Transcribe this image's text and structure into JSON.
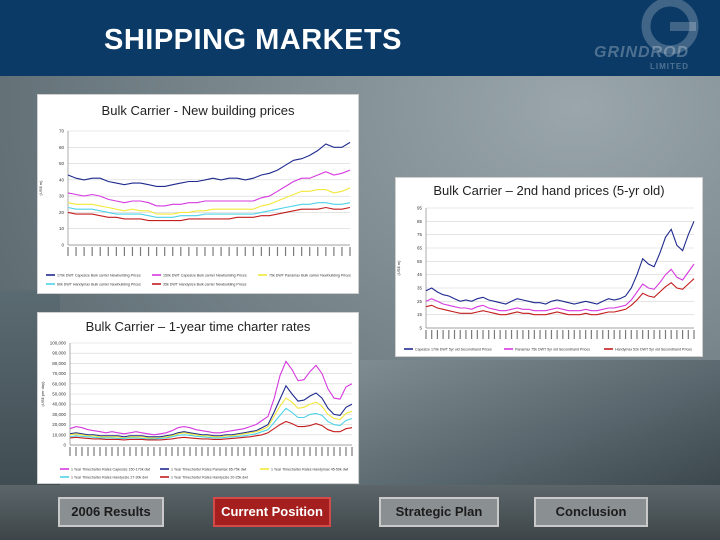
{
  "slide": {
    "title": "SHIPPING MARKETS",
    "logo_text": "GRINDROD",
    "logo_sub": "LIMITED"
  },
  "nav": [
    {
      "label": "2006 Results",
      "active": false
    },
    {
      "label": "Current Position",
      "active": true
    },
    {
      "label": "Strategic Plan",
      "active": false
    },
    {
      "label": "Conclusion",
      "active": false
    }
  ],
  "colors": {
    "header": "#0b3a66",
    "nav_active": "#a51f1f",
    "series_blue": "#1f2a8f",
    "series_magenta": "#d63adf",
    "series_yellow": "#f2e83a",
    "series_cyan": "#4fd3e8",
    "series_red": "#c31d1d"
  },
  "chart_data": [
    {
      "type": "line",
      "title": "Bulk Carrier - New building prices",
      "ylabel": "(US$ m)",
      "ylim": [
        0,
        70
      ],
      "yticks": [
        "0",
        "10",
        "20",
        "30",
        "40",
        "50",
        "60",
        "70"
      ],
      "grid": true,
      "legend": "bottom",
      "x_count": 36,
      "series": [
        {
          "name": "170k DWT Capesize Bulk carrier Newbuilding Prices",
          "color": "#1f2a8f",
          "values": [
            43,
            41,
            40,
            41,
            41,
            39,
            38,
            37,
            38,
            38,
            37,
            36,
            36,
            37,
            38,
            39,
            39,
            40,
            41,
            40,
            41,
            41,
            40,
            41,
            43,
            44,
            46,
            49,
            52,
            53,
            55,
            58,
            62,
            60,
            60,
            63
          ]
        },
        {
          "name": "150k DWT Capesize Bulk carrier Newbuilding Prices",
          "color": "#d63adf",
          "values": [
            32,
            31,
            30,
            31,
            30,
            28,
            27,
            26,
            27,
            27,
            26,
            24,
            24,
            25,
            25,
            26,
            26,
            27,
            27,
            27,
            27,
            27,
            27,
            27,
            29,
            30,
            33,
            36,
            39,
            41,
            41,
            43,
            45,
            43,
            44,
            46
          ]
        },
        {
          "name": "75k DWT Panamax Bulk carrier Newbuilding Prices",
          "color": "#f2e83a",
          "values": [
            26,
            25,
            25,
            25,
            24,
            23,
            22,
            21,
            22,
            21,
            21,
            19,
            19,
            19,
            20,
            20,
            21,
            21,
            22,
            22,
            22,
            22,
            22,
            22,
            24,
            25,
            27,
            29,
            31,
            33,
            33,
            34,
            34,
            32,
            33,
            35
          ]
        },
        {
          "name": "60k DWT Handymax Bulk carrier Newbuilding Prices",
          "color": "#4fd3e8",
          "values": [
            23,
            22,
            22,
            22,
            21,
            20,
            19,
            19,
            19,
            19,
            18,
            17,
            17,
            17,
            18,
            18,
            18,
            19,
            19,
            19,
            19,
            19,
            19,
            19,
            20,
            21,
            22,
            23,
            24,
            25,
            25,
            26,
            26,
            25,
            25,
            26
          ]
        },
        {
          "name": "35k DWT Handysize Bulk carrier Newbuilding Prices",
          "color": "#c31d1d",
          "values": [
            20,
            19,
            19,
            19,
            18,
            17,
            17,
            16,
            16,
            16,
            15,
            15,
            15,
            15,
            15,
            16,
            16,
            16,
            16,
            16,
            16,
            17,
            17,
            17,
            18,
            18,
            19,
            20,
            21,
            22,
            22,
            22,
            23,
            22,
            22,
            23
          ]
        }
      ]
    },
    {
      "type": "line",
      "title": "Bulk Carrier – 2nd hand prices (5-yr old)",
      "title_superscript": "nd",
      "ylabel": "(US$ m)",
      "ylim": [
        0,
        90
      ],
      "yticks": [
        "5",
        "15",
        "25",
        "35",
        "45",
        "55",
        "65",
        "75",
        "85",
        "95"
      ],
      "grid": true,
      "legend": "bottom",
      "x_count": 48,
      "series": [
        {
          "name": "Capesize 170k DWT 5yr old Secondhand Prices",
          "color": "#1f2a8f",
          "values": [
            28,
            30,
            27,
            25,
            24,
            22,
            20,
            21,
            20,
            22,
            23,
            21,
            20,
            19,
            18,
            20,
            22,
            21,
            20,
            19,
            19,
            18,
            20,
            21,
            20,
            19,
            18,
            19,
            20,
            19,
            18,
            20,
            22,
            21,
            22,
            24,
            30,
            40,
            52,
            48,
            46,
            56,
            68,
            74,
            62,
            58,
            70,
            80
          ]
        },
        {
          "name": "Panamax 75k DWT 5yr old Secondhand Prices",
          "color": "#d63adf",
          "values": [
            20,
            22,
            20,
            18,
            17,
            16,
            15,
            15,
            14,
            16,
            17,
            15,
            14,
            13,
            13,
            14,
            15,
            14,
            14,
            13,
            13,
            13,
            14,
            15,
            14,
            13,
            13,
            13,
            14,
            13,
            13,
            14,
            15,
            15,
            16,
            17,
            21,
            27,
            33,
            30,
            29,
            34,
            40,
            44,
            38,
            36,
            42,
            48
          ]
        },
        {
          "name": "Handymax 52k DWT 5yr old Secondhand Prices",
          "color": "#c31d1d",
          "values": [
            16,
            17,
            15,
            14,
            13,
            12,
            11,
            11,
            11,
            12,
            13,
            12,
            11,
            10,
            10,
            11,
            12,
            11,
            11,
            10,
            10,
            10,
            11,
            12,
            11,
            10,
            10,
            10,
            11,
            10,
            10,
            11,
            12,
            12,
            13,
            14,
            17,
            21,
            26,
            24,
            23,
            27,
            31,
            34,
            30,
            29,
            33,
            37
          ]
        }
      ]
    },
    {
      "type": "line",
      "title": "Bulk Carrier – 1-year time charter rates",
      "ylabel": "(US$ per day)",
      "ylim": [
        0,
        100000
      ],
      "yticks": [
        "0",
        "10,000",
        "20,000",
        "30,000",
        "40,000",
        "50,000",
        "60,000",
        "70,000",
        "80,000",
        "90,000",
        "100,000"
      ],
      "grid": true,
      "legend": "bottom",
      "x_count": 48,
      "series": [
        {
          "name": "1 Year Timecharter Rates Capesize 150-170k dwt",
          "color": "#d63adf",
          "values": [
            16000,
            18000,
            17000,
            15000,
            14000,
            13000,
            12000,
            13000,
            12000,
            11000,
            12000,
            13000,
            12000,
            11000,
            10000,
            11000,
            12000,
            14000,
            17000,
            18000,
            17000,
            15000,
            14000,
            13000,
            12000,
            12000,
            13000,
            14000,
            15000,
            16000,
            18000,
            20000,
            24000,
            28000,
            45000,
            68000,
            82000,
            74000,
            63000,
            64000,
            72000,
            78000,
            70000,
            55000,
            46000,
            45000,
            57000,
            60000
          ]
        },
        {
          "name": "1 Year Timecharter Rates Panamax 65-75k dwt",
          "color": "#1f2a8f",
          "values": [
            11000,
            12000,
            11000,
            10000,
            10000,
            9000,
            9000,
            9000,
            9000,
            8000,
            9000,
            9000,
            9000,
            8000,
            8000,
            8000,
            9000,
            10000,
            12000,
            13000,
            12000,
            11000,
            10000,
            10000,
            9000,
            9000,
            10000,
            10000,
            11000,
            12000,
            13000,
            14000,
            17000,
            20000,
            32000,
            45000,
            58000,
            50000,
            43000,
            44000,
            48000,
            51000,
            46000,
            36000,
            30000,
            29000,
            37000,
            40000
          ]
        },
        {
          "name": "1 Year Timecharter Rates Handymax 45-50k dwt",
          "color": "#f2e83a",
          "values": [
            10000,
            11000,
            10000,
            9000,
            9000,
            8000,
            8000,
            8000,
            8000,
            7000,
            8000,
            8000,
            8000,
            7000,
            7000,
            7000,
            8000,
            9000,
            11000,
            12000,
            11000,
            10000,
            9000,
            9000,
            8000,
            8000,
            9000,
            9000,
            10000,
            11000,
            12000,
            13000,
            15000,
            18000,
            28000,
            38000,
            46000,
            42000,
            36000,
            37000,
            40000,
            42000,
            38000,
            30000,
            26000,
            25000,
            31000,
            33000
          ]
        },
        {
          "name": "1 Year Timecharter Rates Handysize 27-30k dwt",
          "color": "#4fd3e8",
          "values": [
            8000,
            9000,
            8500,
            8000,
            7500,
            7000,
            7000,
            7000,
            6500,
            6500,
            7000,
            7000,
            6500,
            6000,
            6000,
            6500,
            7000,
            8000,
            9500,
            10000,
            9500,
            8500,
            8000,
            7500,
            7000,
            7000,
            7500,
            8000,
            8500,
            9000,
            10000,
            11000,
            13000,
            15000,
            22000,
            29000,
            36000,
            32000,
            27000,
            27000,
            30000,
            31000,
            29000,
            23000,
            20000,
            19000,
            24000,
            26000
          ]
        },
        {
          "name": "1 Year Timecharter Rates Handysize 20-25k dwt",
          "color": "#c31d1d",
          "values": [
            7000,
            7500,
            7000,
            6500,
            6000,
            6000,
            5500,
            5500,
            5500,
            5000,
            5500,
            5500,
            5500,
            5000,
            5000,
            5000,
            5500,
            6000,
            7000,
            7500,
            7000,
            6500,
            6000,
            6000,
            5500,
            5500,
            6000,
            6500,
            7000,
            7500,
            8000,
            9000,
            10000,
            12000,
            16000,
            20000,
            23000,
            21000,
            18000,
            18000,
            19000,
            21000,
            19000,
            15000,
            13000,
            13000,
            16000,
            17000
          ]
        }
      ]
    }
  ]
}
